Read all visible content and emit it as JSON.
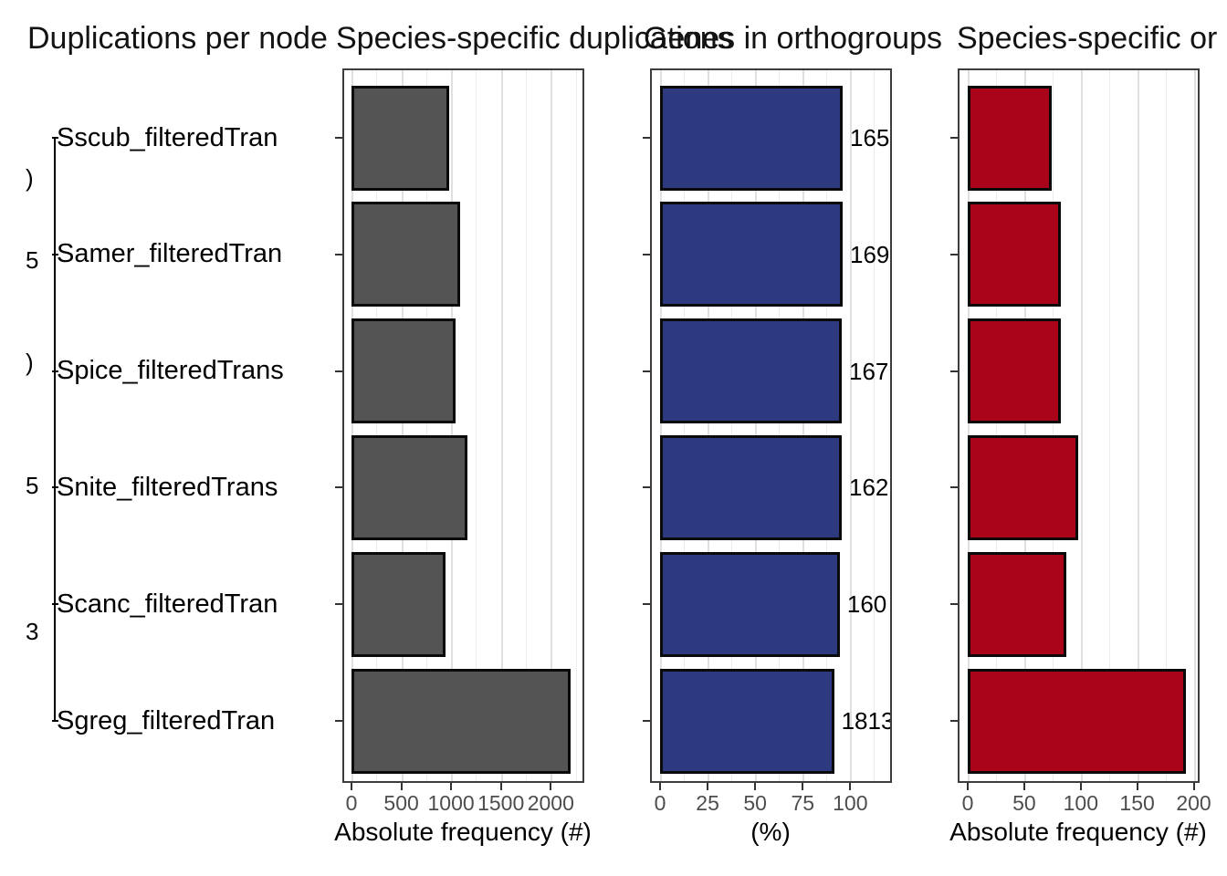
{
  "figure": {
    "titles": [
      "Duplications per node",
      "Species-specific duplications",
      "Genes in orthogroups",
      "Species-specific or"
    ]
  },
  "tree": {
    "tip_labels": [
      "Sscub_filteredTran",
      "Samer_filteredTran",
      "Spice_filteredTrans",
      "Snite_filteredTrans",
      "Scanc_filteredTran",
      "Sgreg_filteredTran"
    ],
    "internal_node_label_fragments": [
      ")",
      "5",
      ")",
      "5",
      "3"
    ]
  },
  "chart_data": [
    {
      "type": "bar",
      "orientation": "horizontal",
      "title": "Duplications per node",
      "categories": [
        "Sscub_filteredTran",
        "Samer_filteredTran",
        "Spice_filteredTrans",
        "Snite_filteredTrans",
        "Scanc_filteredTran",
        "Sgreg_filteredTran"
      ],
      "values": [
        980,
        1090,
        1040,
        1160,
        940,
        2200
      ],
      "xlabel": "Absolute frequency (#)",
      "xticks": [
        0,
        500,
        1000,
        1500,
        2000
      ],
      "xlim": [
        0,
        2300
      ],
      "grid": true,
      "legend": "none",
      "bar_color": "#545454"
    },
    {
      "type": "bar",
      "orientation": "horizontal",
      "title": "Genes in orthogroups",
      "categories": [
        "Sscub_filteredTran",
        "Samer_filteredTran",
        "Spice_filteredTrans",
        "Snite_filteredTrans",
        "Scanc_filteredTran",
        "Sgreg_filteredTran"
      ],
      "values": [
        96,
        96,
        95.5,
        95.5,
        94.5,
        91.5
      ],
      "bar_labels": [
        "165",
        "169",
        "167",
        "162",
        "160",
        "1813"
      ],
      "xlabel": "(%)",
      "xticks": [
        0,
        25,
        50,
        75,
        100
      ],
      "xlim": [
        0,
        120
      ],
      "grid": true,
      "legend": "none",
      "bar_color": "#2E3A80"
    },
    {
      "type": "bar",
      "orientation": "horizontal",
      "title": "Species-specific or",
      "categories": [
        "Sscub_filteredTran",
        "Samer_filteredTran",
        "Spice_filteredTrans",
        "Snite_filteredTrans",
        "Scanc_filteredTran",
        "Sgreg_filteredTran"
      ],
      "values": [
        74,
        82,
        82,
        98,
        87,
        193
      ],
      "xlabel": "Absolute frequency (#)",
      "xticks": [
        0,
        50,
        100,
        150,
        200
      ],
      "xlim": [
        0,
        202
      ],
      "grid": true,
      "legend": "none",
      "bar_color": "#A90419"
    }
  ]
}
